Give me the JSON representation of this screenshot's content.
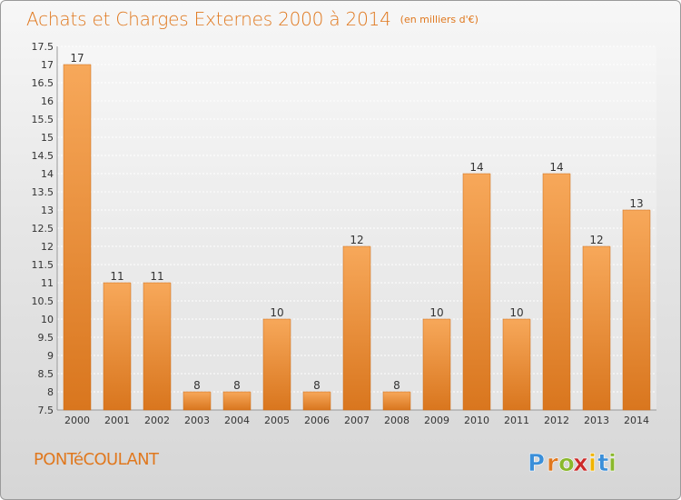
{
  "header": {
    "title": "Achats et Charges Externes 2000 à 2014",
    "unit": "(en milliers d'€)"
  },
  "footer": {
    "place": "PONTéCOULANT",
    "logo": {
      "letters": [
        "P",
        "r",
        "o",
        "x",
        "i",
        "t",
        "i"
      ],
      "colors": [
        "#3b8fd9",
        "#e0781e",
        "#8ab82c",
        "#cc2a2a",
        "#f0b400",
        "#3b8fd9",
        "#8ab82c"
      ]
    }
  },
  "colors": {
    "accent": "#e0781e",
    "bar_light": "#f7a85a",
    "bar_dark": "#d9761e",
    "grid": "#ffffff",
    "axis_text": "#333333"
  },
  "chart_data": {
    "type": "bar",
    "title": "Achats et Charges Externes 2000 à 2014",
    "xlabel": "",
    "ylabel": "",
    "categories": [
      "2000",
      "2001",
      "2002",
      "2003",
      "2004",
      "2005",
      "2006",
      "2007",
      "2008",
      "2009",
      "2010",
      "2011",
      "2012",
      "2013",
      "2014"
    ],
    "values": [
      17,
      11,
      11,
      8,
      8,
      10,
      8,
      12,
      8,
      10,
      14,
      10,
      14,
      12,
      13
    ],
    "ylim": [
      7.5,
      17.5
    ],
    "yticks": [
      7.5,
      8,
      8.5,
      9,
      9.5,
      10,
      10.5,
      11,
      11.5,
      12,
      12.5,
      13,
      13.5,
      14,
      14.5,
      15,
      15.5,
      16,
      16.5,
      17,
      17.5
    ],
    "grid": true,
    "data_labels": true
  }
}
